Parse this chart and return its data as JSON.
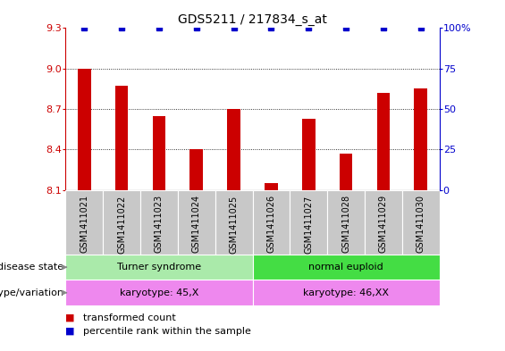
{
  "title": "GDS5211 / 217834_s_at",
  "samples": [
    "GSM1411021",
    "GSM1411022",
    "GSM1411023",
    "GSM1411024",
    "GSM1411025",
    "GSM1411026",
    "GSM1411027",
    "GSM1411028",
    "GSM1411029",
    "GSM1411030"
  ],
  "bar_values": [
    9.0,
    8.87,
    8.65,
    8.4,
    8.7,
    8.15,
    8.63,
    8.37,
    8.82,
    8.85
  ],
  "bar_color": "#cc0000",
  "percentile_color": "#0000cc",
  "ylim_left": [
    8.1,
    9.3
  ],
  "ylim_right": [
    0,
    100
  ],
  "yticks_left": [
    8.1,
    8.4,
    8.7,
    9.0,
    9.3
  ],
  "yticks_right": [
    0,
    25,
    50,
    75,
    100
  ],
  "ytick_labels_right": [
    "0",
    "25",
    "50",
    "75",
    "100%"
  ],
  "grid_lines": [
    9.0,
    8.7,
    8.4
  ],
  "disease_state_groups": [
    {
      "label": "Turner syndrome",
      "start": 0,
      "end": 4,
      "color": "#aaeaaa"
    },
    {
      "label": "normal euploid",
      "start": 5,
      "end": 9,
      "color": "#44dd44"
    }
  ],
  "genotype_groups": [
    {
      "label": "karyotype: 45,X",
      "start": 0,
      "end": 4,
      "color": "#ee88ee"
    },
    {
      "label": "karyotype: 46,XX",
      "start": 5,
      "end": 9,
      "color": "#ee88ee"
    }
  ],
  "row_labels": [
    "disease state",
    "genotype/variation"
  ],
  "legend_items": [
    {
      "label": "transformed count",
      "color": "#cc0000"
    },
    {
      "label": "percentile rank within the sample",
      "color": "#0000cc"
    }
  ],
  "bar_width": 0.35,
  "bg_color": "#ffffff",
  "bar_bottom": 8.1,
  "sample_bg_color": "#c8c8c8",
  "sample_bg_alt": "#d8d8d8"
}
